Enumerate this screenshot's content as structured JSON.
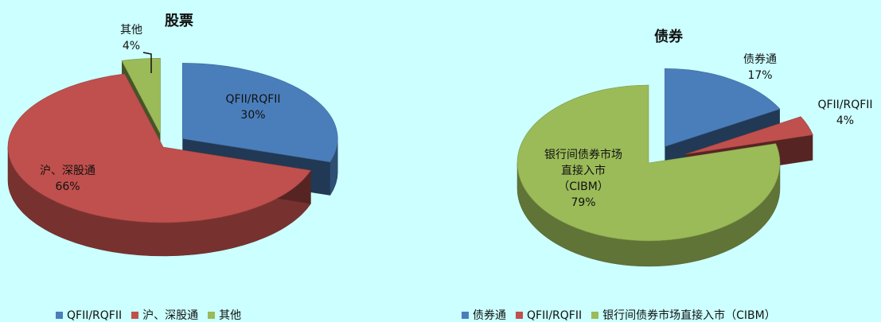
{
  "chart_data": [
    {
      "type": "pie",
      "title": "股票",
      "categories": [
        "QFII/RQFII",
        "沪、深股通",
        "其他"
      ],
      "values": [
        30,
        66,
        4
      ],
      "value_labels": [
        "30%",
        "66%",
        "4%"
      ],
      "colors": [
        "#4a7ebb",
        "#c0504d",
        "#9bbb59"
      ]
    },
    {
      "type": "pie",
      "title": "债券",
      "categories": [
        "债券通",
        "QFII/RQFII",
        "银行间债券市场直接入市（CIBM）"
      ],
      "values": [
        17,
        4,
        79
      ],
      "value_labels": [
        "17%",
        "4%",
        "79%"
      ],
      "colors": [
        "#4a7ebb",
        "#c0504d",
        "#9bbb59"
      ]
    }
  ]
}
